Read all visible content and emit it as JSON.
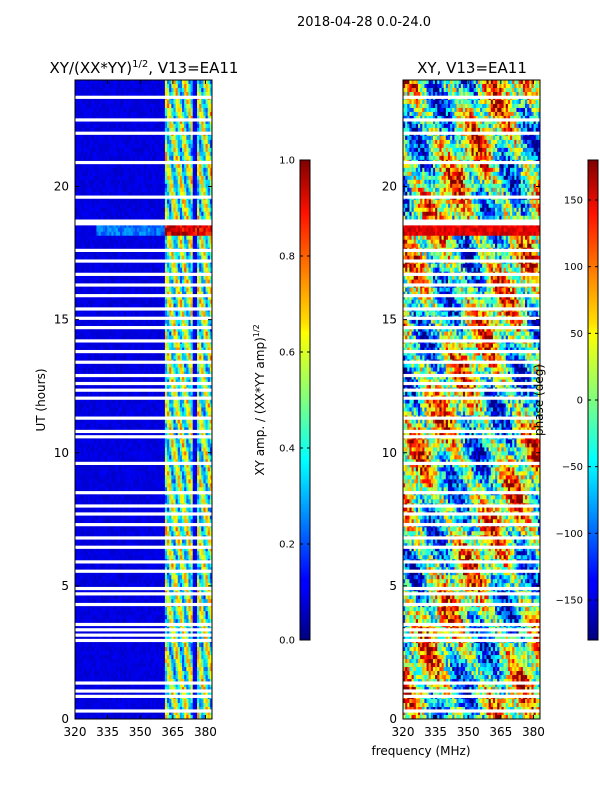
{
  "figure_title": "2018-04-28 0.0-24.0",
  "shared_xlabel": "frequency (MHz)",
  "chart_data": [
    {
      "type": "heatmap",
      "title": "XY/(XX*YY)^1/2, V13=EA11",
      "title_main": "XY/(XX*YY)",
      "title_sup": "1/2",
      "title_tail": ", V13=EA11",
      "xlabel": "frequency (MHz)",
      "ylabel": "UT (hours)",
      "xlim": [
        320,
        383
      ],
      "ylim": [
        0,
        24
      ],
      "xticks": [
        320,
        335,
        350,
        365,
        380
      ],
      "yticks": [
        0,
        5,
        10,
        15,
        20
      ],
      "colorbar": {
        "label": "XY amp. / (XX*YY amp)^1/2",
        "label_main": "XY amp. / (XX*YY amp)",
        "label_sup": "1/2",
        "range": [
          0.0,
          1.0
        ],
        "ticks": [
          "0.0",
          "0.2",
          "0.4",
          "0.6",
          "0.8",
          "1.0"
        ],
        "tick_values": [
          0.0,
          0.2,
          0.4,
          0.6,
          0.8,
          1.0
        ],
        "colormap": "jet"
      }
    },
    {
      "type": "heatmap",
      "title": "XY, V13=EA11",
      "xlim": [
        320,
        383
      ],
      "ylim": [
        0,
        24
      ],
      "xticks": [
        320,
        335,
        350,
        365,
        380
      ],
      "yticks": [
        0,
        5,
        10,
        15,
        20
      ],
      "colorbar": {
        "label": "phase (deg)",
        "range": [
          -180,
          180
        ],
        "ticks": [
          "−150",
          "−100",
          "−50",
          "0",
          "50",
          "100",
          "150"
        ],
        "tick_values": [
          -150,
          -100,
          -50,
          0,
          50,
          100,
          150
        ],
        "colormap": "jet"
      }
    }
  ],
  "flagged_ut_hours": [
    23.35,
    22.5,
    22.0,
    20.9,
    19.6,
    18.7,
    18.6,
    17.6,
    17.2,
    16.7,
    16.3,
    15.9,
    15.4,
    15.05,
    14.7,
    14.2,
    13.8,
    13.4,
    12.9,
    12.6,
    12.35,
    12.05,
    11.3,
    10.8,
    10.6,
    9.6,
    8.5,
    8.0,
    7.7,
    7.3,
    6.8,
    6.45,
    5.9,
    5.55,
    4.9,
    4.7,
    4.3,
    3.55,
    3.35,
    3.15,
    2.95,
    1.35,
    1.05,
    0.85,
    0.3
  ]
}
